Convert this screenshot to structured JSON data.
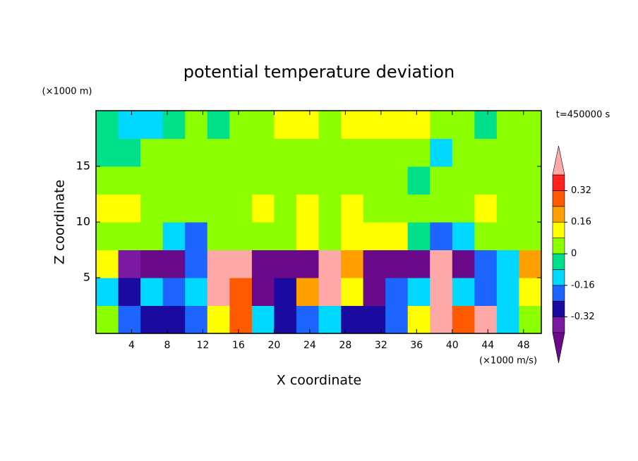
{
  "chart_data": {
    "type": "contour",
    "title": "potential temperature deviation",
    "xlabel": "X coordinate",
    "ylabel": "Z coordinate",
    "xunit": "(×1000 m/s)",
    "yunit": "(×1000 m)",
    "annotation": "t=450000 s",
    "xlim": [
      0,
      50
    ],
    "ylim": [
      0,
      20
    ],
    "xticks": [
      4,
      8,
      12,
      16,
      20,
      24,
      28,
      32,
      36,
      40,
      44,
      48
    ],
    "yticks": [
      5,
      10,
      15
    ],
    "z": [
      [
        0,
        -0.2,
        -0.3,
        -0.3,
        -0.2,
        0.1,
        0.3,
        -0.1,
        -0.3,
        -0.2,
        -0.1,
        -0.3,
        -0.3,
        -0.2,
        0.1,
        0.45,
        0.3,
        0.45,
        -0.1,
        0
      ],
      [
        -0.1,
        -0.3,
        -0.1,
        -0.2,
        -0.1,
        0.45,
        0.3,
        -0.45,
        -0.3,
        0.2,
        0.45,
        0.1,
        -0.45,
        -0.2,
        -0.1,
        0.45,
        -0.1,
        -0.2,
        -0.1,
        0.1
      ],
      [
        0.1,
        -0.35,
        -0.45,
        -0.45,
        -0.2,
        0.45,
        0.45,
        -0.45,
        -0.45,
        -0.45,
        0.45,
        0.2,
        -0.45,
        -0.45,
        -0.45,
        0.45,
        -0.45,
        -0.2,
        -0.1,
        0.2
      ],
      [
        0.05,
        0.05,
        0.05,
        -0.1,
        -0.2,
        0,
        0,
        0.05,
        0.05,
        0.1,
        0.05,
        0.1,
        0.15,
        0.1,
        -0.05,
        -0.2,
        -0.1,
        0,
        0,
        0.05
      ],
      [
        0.1,
        0.1,
        0.05,
        0.05,
        0.05,
        0.05,
        0.05,
        0.1,
        0.05,
        0.1,
        0.05,
        0.1,
        0.05,
        0.05,
        0,
        0.05,
        0.05,
        0.1,
        0.05,
        0.05
      ],
      [
        0.05,
        0.05,
        0.05,
        0.05,
        0.05,
        0.05,
        0.05,
        0.05,
        0.05,
        0.05,
        0.05,
        0.05,
        0,
        0,
        -0.05,
        0,
        0.05,
        0.05,
        0.05,
        0.05
      ],
      [
        -0.05,
        -0.05,
        0.05,
        0.05,
        0.05,
        0.05,
        0,
        0.05,
        0.05,
        0.05,
        0.05,
        0.05,
        0.05,
        0,
        0,
        -0.1,
        0.05,
        0.05,
        0.05,
        0.05
      ],
      [
        -0.05,
        -0.1,
        -0.1,
        -0.05,
        0,
        -0.05,
        0.05,
        0.05,
        0.1,
        0.1,
        0.05,
        0.1,
        0.15,
        0.15,
        0.1,
        0.05,
        0,
        -0.05,
        0.05,
        0.05
      ]
    ],
    "levels": [
      -0.4,
      -0.32,
      -0.24,
      -0.16,
      -0.08,
      0,
      0.08,
      0.16,
      0.24,
      0.32,
      0.4
    ],
    "colors": [
      "#6a0a8a",
      "#7a1aa0",
      "#1a0aa0",
      "#1e64ff",
      "#00d8ff",
      "#00e08a",
      "#8cff00",
      "#ffff00",
      "#ffa000",
      "#ff5a00",
      "#ff2020",
      "#ffa8a8"
    ],
    "cbar_ticks": [
      -0.32,
      -0.16,
      0,
      0.16,
      0.32
    ]
  }
}
